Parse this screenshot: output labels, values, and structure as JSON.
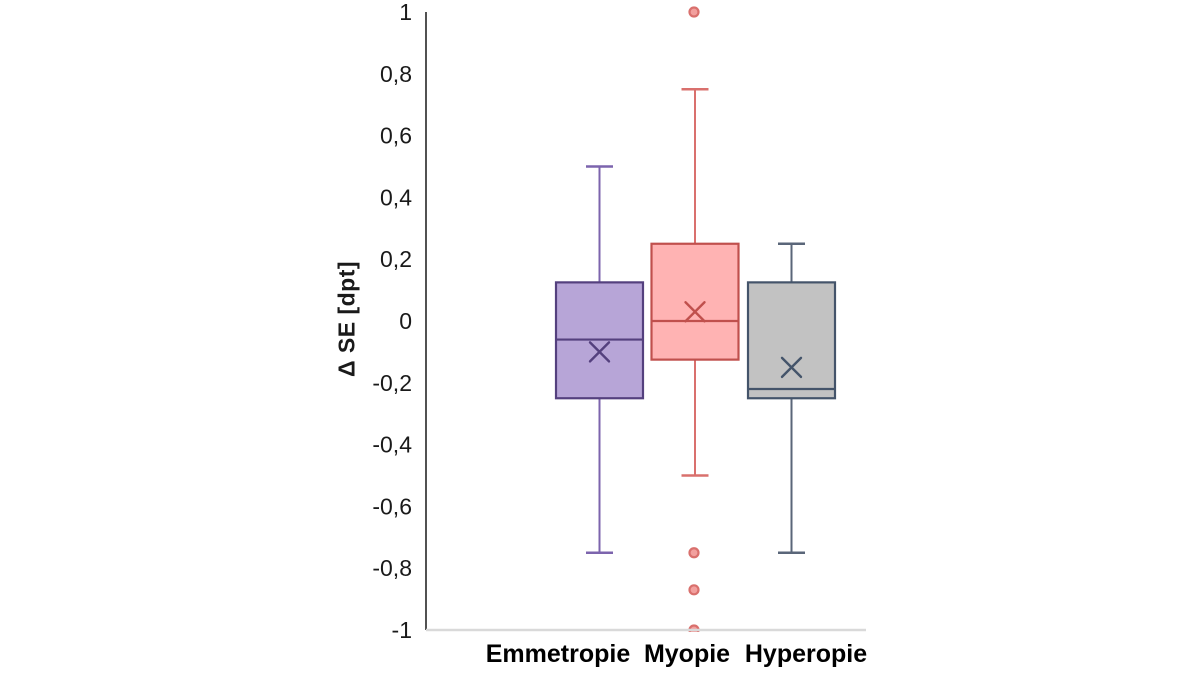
{
  "figure": {
    "background": "#ffffff",
    "axis_color": "#262626",
    "baseline_color": "#d9d9d9",
    "tick_label_color": "#1a1a1a",
    "category_label_color": "#000000"
  },
  "chart_data": {
    "type": "box",
    "title": "",
    "ylabel": "Δ SE [dpt]",
    "xlabel": "",
    "ylim": [
      -1,
      1
    ],
    "grid": false,
    "legend": "none",
    "y_ticks": [
      {
        "value": 1,
        "label": "1"
      },
      {
        "value": 0.8,
        "label": "0,8"
      },
      {
        "value": 0.6,
        "label": "0,6"
      },
      {
        "value": 0.4,
        "label": "0,4"
      },
      {
        "value": 0.2,
        "label": "0,2"
      },
      {
        "value": 0,
        "label": "0"
      },
      {
        "value": -0.2,
        "label": "-0,2"
      },
      {
        "value": -0.4,
        "label": "-0,4"
      },
      {
        "value": -0.6,
        "label": "-0,6"
      },
      {
        "value": -0.8,
        "label": "-0,8"
      },
      {
        "value": -1,
        "label": "-1"
      }
    ],
    "categories": [
      "Emmetropie",
      "Myopie",
      "Hyperopie"
    ],
    "series": [
      {
        "name": "Emmetropie",
        "whisker_low": -0.75,
        "q1": -0.25,
        "median": -0.06,
        "mean": -0.1,
        "q3": 0.125,
        "whisker_high": 0.5,
        "outliers": [],
        "fill": "#b7a5d7",
        "stroke": "#54407e",
        "line": "#7c64ad",
        "outlier_fill": "#cdbfe6"
      },
      {
        "name": "Myopie",
        "whisker_low": -0.5,
        "q1": -0.125,
        "median": 0,
        "mean": 0.03,
        "q3": 0.25,
        "whisker_high": 0.75,
        "outliers": [
          1,
          -0.75,
          -0.87,
          -1
        ],
        "fill": "#ffb3b3",
        "stroke": "#c0504d",
        "line": "#d9706d",
        "outlier_fill": "#f2a09e"
      },
      {
        "name": "Hyperopie",
        "whisker_low": -0.75,
        "q1": -0.25,
        "median": -0.22,
        "mean": -0.15,
        "q3": 0.125,
        "whisker_high": 0.25,
        "outliers": [],
        "fill": "#c2c2c2",
        "stroke": "#44546a",
        "line": "#5a6679",
        "outlier_fill": "#d8dce2"
      }
    ]
  }
}
